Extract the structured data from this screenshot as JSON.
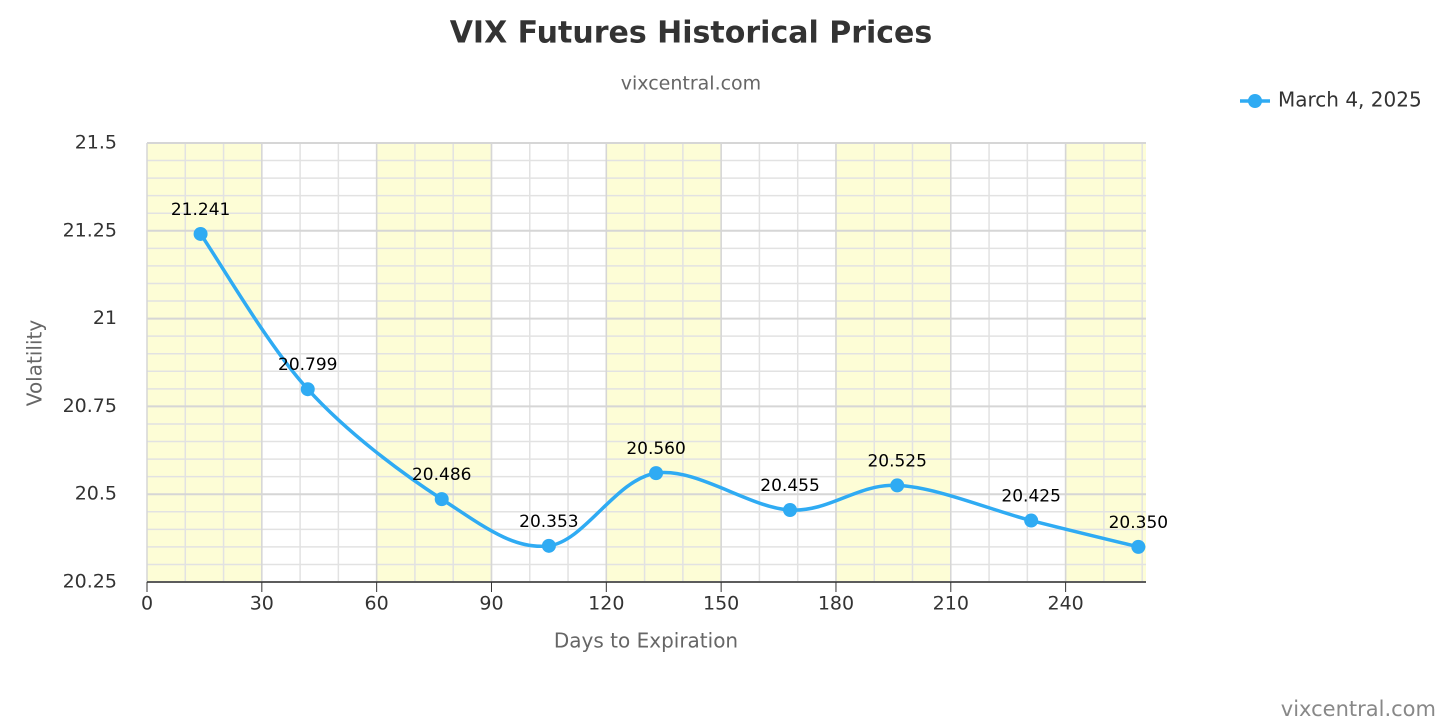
{
  "chart_data": {
    "type": "line",
    "title": "VIX Futures Historical Prices",
    "subtitle": "vixcentral.com",
    "credit": "vixcentral.com",
    "x_label": "Days to Expiration",
    "y_label": "Volatility",
    "x": [
      14,
      42,
      77,
      105,
      133,
      168,
      196,
      231,
      259
    ],
    "series": [
      {
        "name": "March 4, 2025",
        "color": "#2fabf3",
        "values": [
          21.241,
          20.799,
          20.486,
          20.353,
          20.56,
          20.455,
          20.525,
          20.425,
          20.35
        ],
        "value_labels": [
          "21.241",
          "20.799",
          "20.486",
          "20.353",
          "20.560",
          "20.455",
          "20.525",
          "20.425",
          "20.350"
        ]
      }
    ],
    "xlim": [
      0,
      261
    ],
    "xticks": [
      0,
      30,
      60,
      90,
      120,
      150,
      180,
      210,
      240
    ],
    "ylim": [
      20.25,
      21.5
    ],
    "yticks": [
      20.25,
      20.5,
      20.75,
      21,
      21.25,
      21.5
    ],
    "grid": true,
    "legend": "top-right",
    "band_color": "#fdfdd6"
  }
}
